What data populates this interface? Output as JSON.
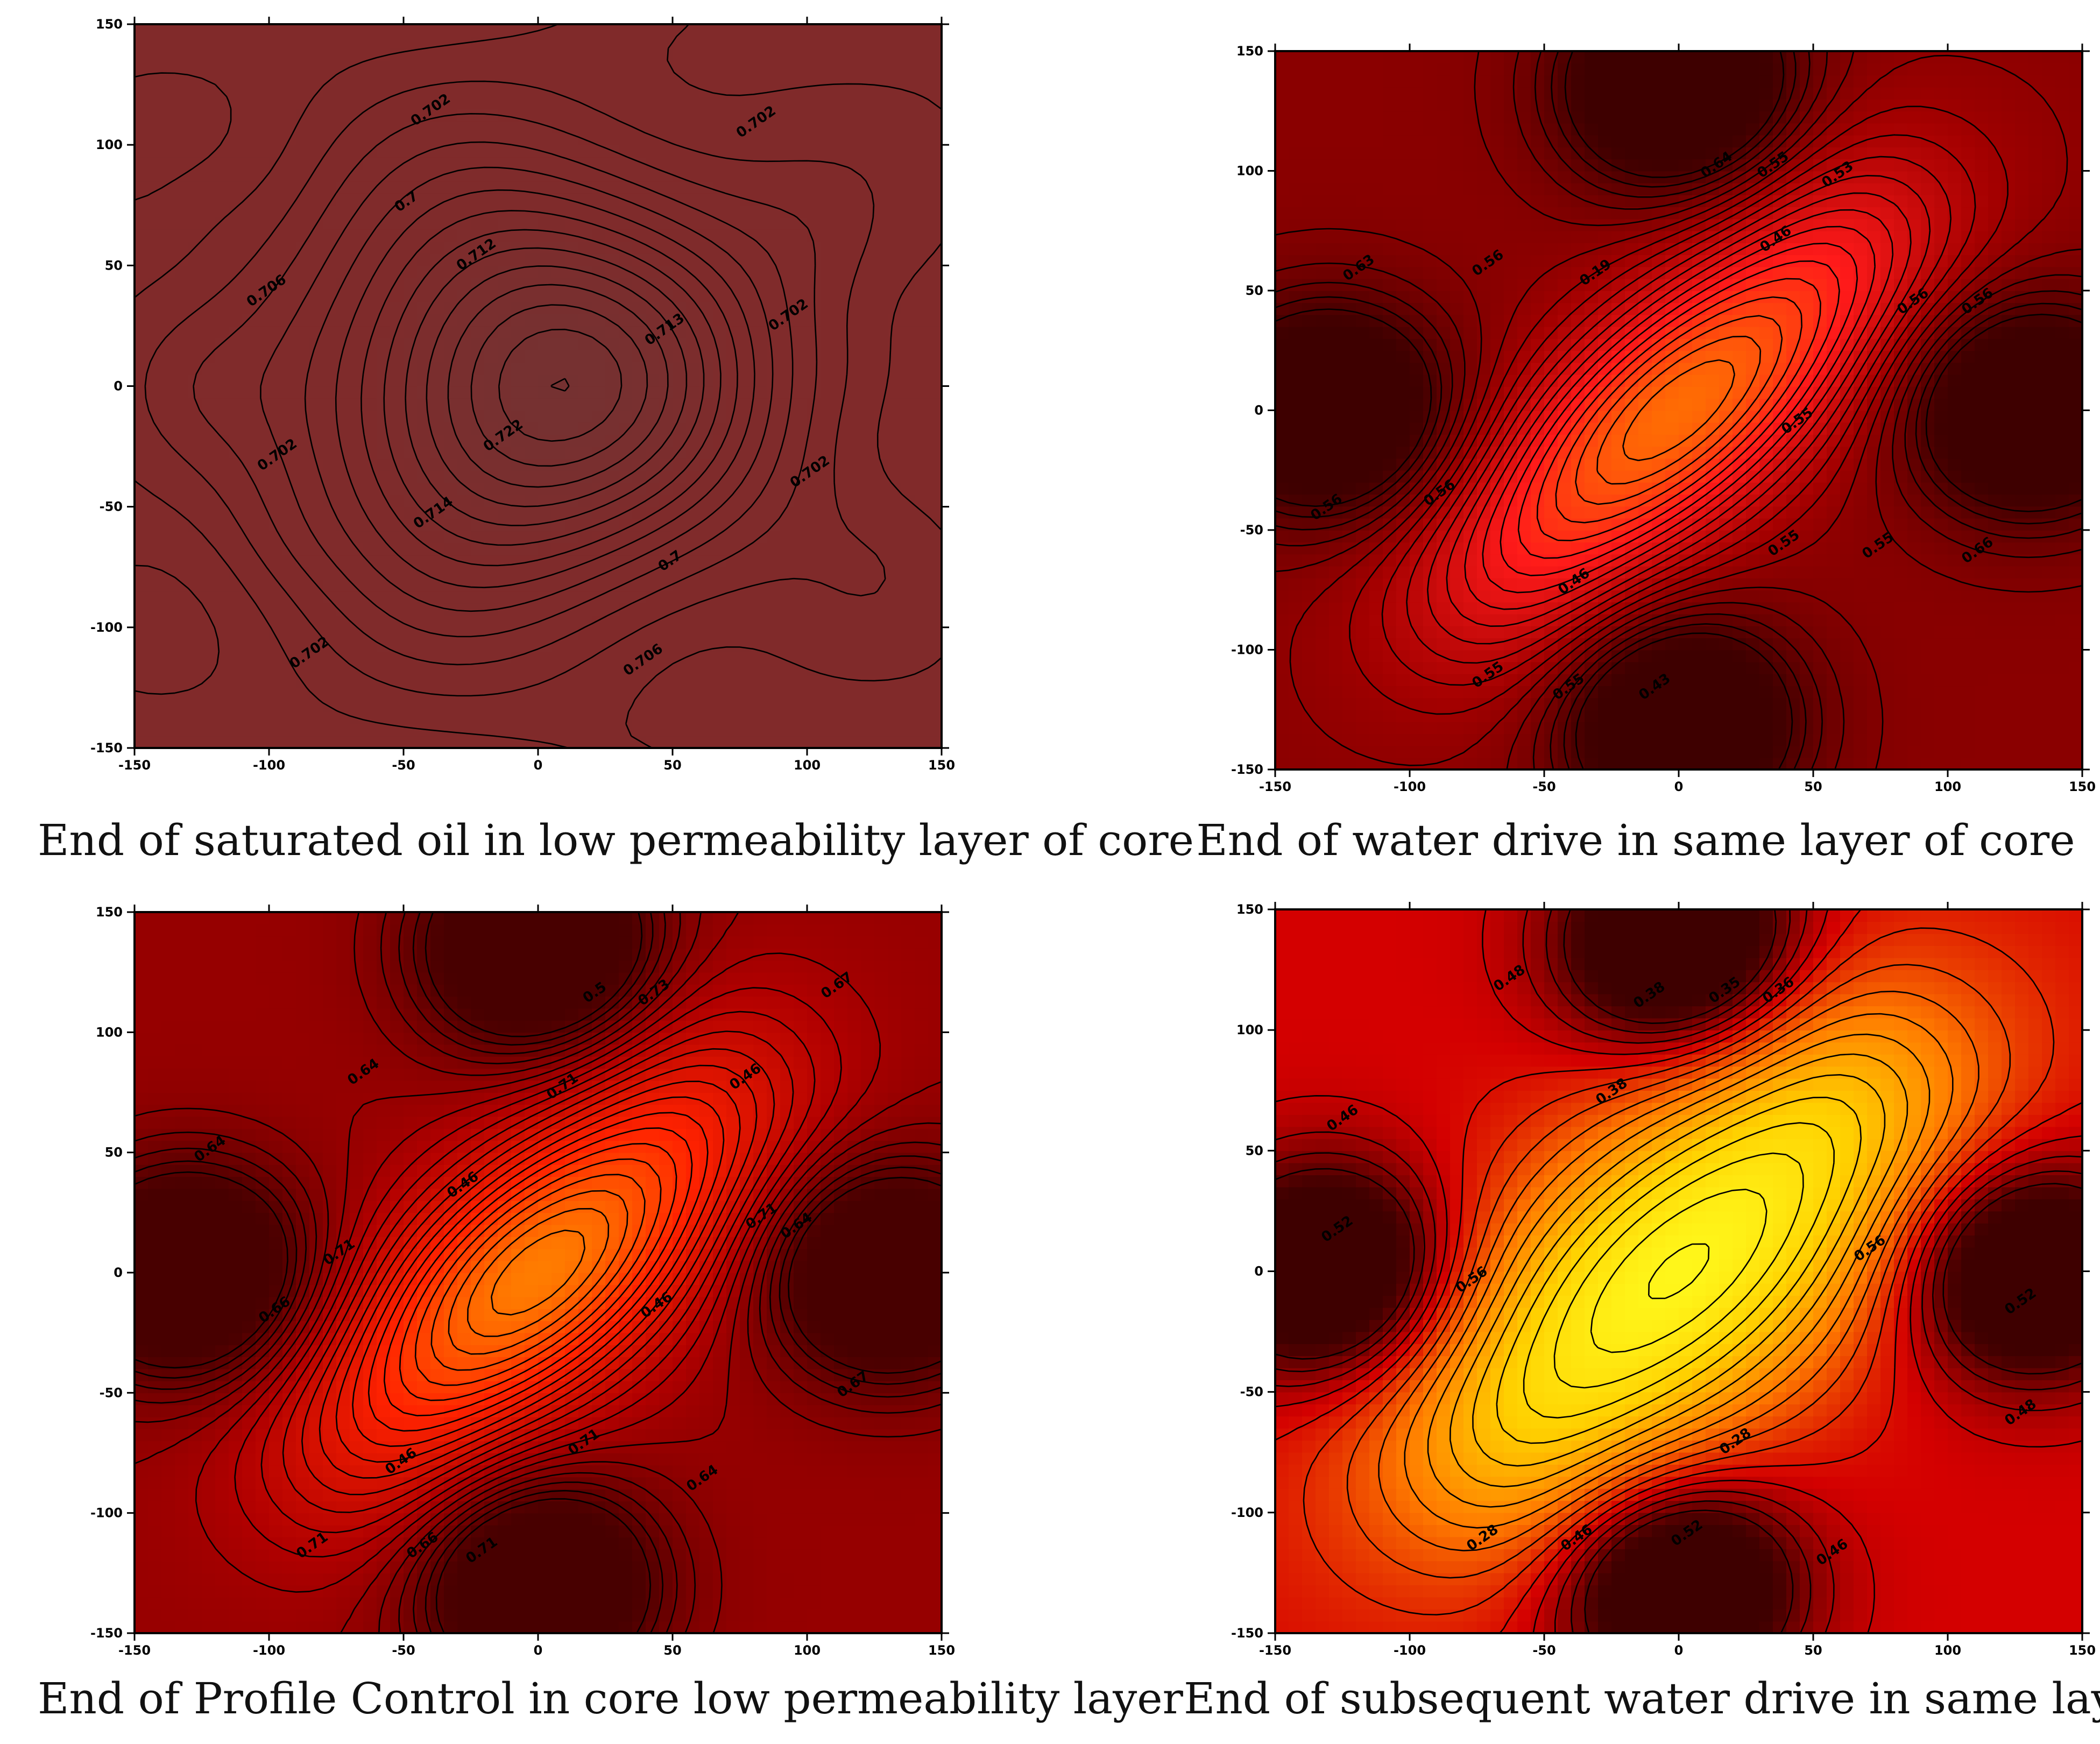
{
  "chart_data": [
    {
      "type": "contour",
      "caption": "End of saturated oil in low permeability layer of core",
      "xlim": [
        -150,
        150
      ],
      "ylim": [
        -150,
        150
      ],
      "xticks": [
        -150,
        -100,
        -50,
        0,
        50,
        100,
        150
      ],
      "yticks": [
        -150,
        -100,
        -50,
        0,
        50,
        100,
        150
      ],
      "xtick_labels": [
        "-150",
        "-100",
        "-50",
        "0",
        "50",
        "100",
        "150"
      ],
      "ytick_labels": [
        "-150",
        "-100",
        "-50",
        "0",
        "50",
        "100",
        "150"
      ],
      "colors": {
        "low": "#812a2a",
        "high": "#733333"
      },
      "contour_labels": [
        {
          "text": "0.702",
          "x": -39,
          "y": 113
        },
        {
          "text": "0.702",
          "x": 82,
          "y": 108
        },
        {
          "text": "0.7",
          "x": -48,
          "y": 75
        },
        {
          "text": "0.712",
          "x": -22,
          "y": 53
        },
        {
          "text": "0.706",
          "x": -100,
          "y": 38
        },
        {
          "text": "0.713",
          "x": 48,
          "y": 22
        },
        {
          "text": "0.702",
          "x": 94,
          "y": 28
        },
        {
          "text": "0.722",
          "x": -12,
          "y": -22
        },
        {
          "text": "0.702",
          "x": -96,
          "y": -30
        },
        {
          "text": "0.702",
          "x": 102,
          "y": -37
        },
        {
          "text": "0.714",
          "x": -38,
          "y": -54
        },
        {
          "text": "0.7",
          "x": 50,
          "y": -74
        },
        {
          "text": "0.702",
          "x": -84,
          "y": -112
        },
        {
          "text": "0.706",
          "x": 40,
          "y": -115
        }
      ]
    },
    {
      "type": "contour",
      "caption": "End of water drive in same layer of core",
      "xlim": [
        -150,
        150
      ],
      "ylim": [
        -150,
        150
      ],
      "xticks": [
        -150,
        -100,
        -50,
        0,
        50,
        100,
        150
      ],
      "yticks": [
        -150,
        -100,
        -50,
        0,
        50,
        100,
        150
      ],
      "xtick_labels": [
        "-150",
        "-100",
        "-50",
        "0",
        "50",
        "100",
        "150"
      ],
      "ytick_labels": [
        "-150",
        "-100",
        "-50",
        "0",
        "50",
        "100",
        "150"
      ],
      "colors": {
        "low": "#4a0000",
        "mid": "#ff1a1a",
        "high": "#ff7a00"
      },
      "contour_labels": [
        {
          "text": "0.64",
          "x": 15,
          "y": 101
        },
        {
          "text": "0.55",
          "x": 36,
          "y": 101
        },
        {
          "text": "0.53",
          "x": 60,
          "y": 97
        },
        {
          "text": "0.63",
          "x": -118,
          "y": 58
        },
        {
          "text": "0.56",
          "x": -70,
          "y": 60
        },
        {
          "text": "0.19",
          "x": -30,
          "y": 56
        },
        {
          "text": "0.46",
          "x": 37,
          "y": 70
        },
        {
          "text": "0.56",
          "x": 88,
          "y": 44
        },
        {
          "text": "0.56",
          "x": 112,
          "y": 44
        },
        {
          "text": "0.55",
          "x": 45,
          "y": -6
        },
        {
          "text": "0.56",
          "x": -130,
          "y": -42
        },
        {
          "text": "0.56",
          "x": -88,
          "y": -36
        },
        {
          "text": "0.55",
          "x": 40,
          "y": -57
        },
        {
          "text": "0.46",
          "x": -38,
          "y": -73
        },
        {
          "text": "0.55",
          "x": 75,
          "y": -58
        },
        {
          "text": "0.66",
          "x": 112,
          "y": -60
        },
        {
          "text": "0.55",
          "x": -70,
          "y": -112
        },
        {
          "text": "0.55",
          "x": -40,
          "y": -117
        },
        {
          "text": "0.43",
          "x": -8,
          "y": -117
        }
      ]
    },
    {
      "type": "contour",
      "caption": "End of Profile Control in core low permeability layer",
      "xlim": [
        -150,
        150
      ],
      "ylim": [
        -150,
        150
      ],
      "xticks": [
        -150,
        -100,
        -50,
        0,
        50,
        100,
        150
      ],
      "yticks": [
        -150,
        -100,
        -50,
        0,
        50,
        100,
        150
      ],
      "xtick_labels": [
        "-150",
        "-100",
        "-50",
        "0",
        "50",
        "100",
        "150"
      ],
      "ytick_labels": [
        "-150",
        "-100",
        "-50",
        "0",
        "50",
        "100",
        "150"
      ],
      "colors": {
        "low": "#500000",
        "mid": "#ff2a00",
        "high": "#ff8800"
      },
      "contour_labels": [
        {
          "text": "0.67",
          "x": 112,
          "y": 118
        },
        {
          "text": "0.5",
          "x": 22,
          "y": 115
        },
        {
          "text": "0.73",
          "x": 44,
          "y": 115
        },
        {
          "text": "0.64",
          "x": -64,
          "y": 82
        },
        {
          "text": "0.71",
          "x": 10,
          "y": 76
        },
        {
          "text": "0.46",
          "x": 78,
          "y": 80
        },
        {
          "text": "0.64",
          "x": -121,
          "y": 50
        },
        {
          "text": "0.46",
          "x": -27,
          "y": 35
        },
        {
          "text": "0.71",
          "x": -73,
          "y": 7
        },
        {
          "text": "0.71",
          "x": 84,
          "y": 22
        },
        {
          "text": "0.64",
          "x": 97,
          "y": 18
        },
        {
          "text": "0.46",
          "x": 45,
          "y": -15
        },
        {
          "text": "0.66",
          "x": -97,
          "y": -17
        },
        {
          "text": "0.67",
          "x": 118,
          "y": -48
        },
        {
          "text": "0.46",
          "x": -50,
          "y": -80
        },
        {
          "text": "0.71",
          "x": 18,
          "y": -72
        },
        {
          "text": "0.64",
          "x": 62,
          "y": -87
        },
        {
          "text": "0.71",
          "x": -83,
          "y": -115
        },
        {
          "text": "0.66",
          "x": -42,
          "y": -115
        },
        {
          "text": "0.71",
          "x": -20,
          "y": -117
        }
      ]
    },
    {
      "type": "contour",
      "caption": "End of subsequent water drive in same layer",
      "xlim": [
        -150,
        150
      ],
      "ylim": [
        -150,
        150
      ],
      "xticks": [
        -150,
        -100,
        -50,
        0,
        50,
        100,
        150
      ],
      "yticks": [
        -150,
        -100,
        -50,
        0,
        50,
        100,
        150
      ],
      "xtick_labels": [
        "-150",
        "-100",
        "-50",
        "0",
        "50",
        "100",
        "150"
      ],
      "ytick_labels": [
        "-150",
        "-100",
        "-50",
        "0",
        "50",
        "100",
        "150"
      ],
      "colors": {
        "low": "#4a0000",
        "mid": "#ff7a00",
        "high": "#ffff00"
      },
      "contour_labels": [
        {
          "text": "0.48",
          "x": -62,
          "y": 120
        },
        {
          "text": "0.38",
          "x": -10,
          "y": 113
        },
        {
          "text": "0.35",
          "x": 18,
          "y": 115
        },
        {
          "text": "0.36",
          "x": 38,
          "y": 115
        },
        {
          "text": "0.38",
          "x": -24,
          "y": 73
        },
        {
          "text": "0.46",
          "x": -124,
          "y": 62
        },
        {
          "text": "0.52",
          "x": -126,
          "y": 16
        },
        {
          "text": "0.56",
          "x": -76,
          "y": -5
        },
        {
          "text": "0.56",
          "x": 72,
          "y": 8
        },
        {
          "text": "0.52",
          "x": 128,
          "y": -14
        },
        {
          "text": "0.48",
          "x": 128,
          "y": -60
        },
        {
          "text": "0.28",
          "x": 22,
          "y": -72
        },
        {
          "text": "0.28",
          "x": -72,
          "y": -112
        },
        {
          "text": "0.46",
          "x": -37,
          "y": -112
        },
        {
          "text": "0.52",
          "x": 4,
          "y": -110
        },
        {
          "text": "0.46",
          "x": 58,
          "y": -118
        }
      ]
    }
  ]
}
